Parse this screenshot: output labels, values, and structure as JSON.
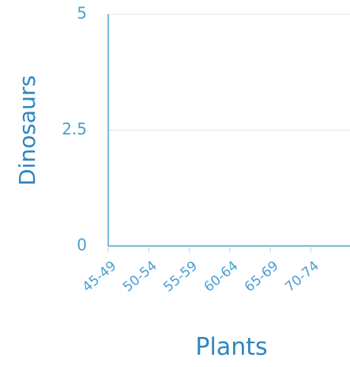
{
  "chart_data": {
    "type": "bar",
    "xlabel": "Plants",
    "ylabel": "Dinosaurs",
    "categories": [
      "45-49",
      "50-54",
      "55-59",
      "60-64",
      "65-69",
      "70-74"
    ],
    "values": [
      0,
      0,
      0,
      0,
      0,
      0
    ],
    "color": "#3a8fc9",
    "ylim": [
      0,
      5
    ],
    "yticks": [
      0,
      2.5,
      5
    ],
    "grid": true
  }
}
